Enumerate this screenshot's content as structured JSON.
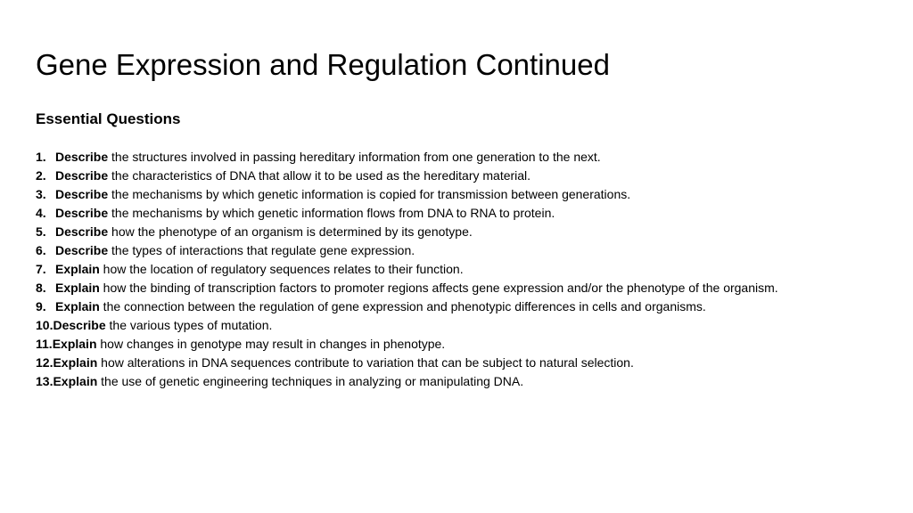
{
  "title": "Gene Expression and Regulation Continued",
  "subtitle": "Essential Questions",
  "items": [
    {
      "num": "1.",
      "verb": "Describe",
      "text": " the structures involved in passing hereditary information from one generation to the next."
    },
    {
      "num": "2.",
      "verb": "Describe",
      "text": " the characteristics of DNA that allow it to be used as the hereditary material."
    },
    {
      "num": "3.",
      "verb": "Describe",
      "text": " the mechanisms by which genetic information is copied for transmission between generations."
    },
    {
      "num": "4.",
      "verb": "Describe",
      "text": " the mechanisms by which genetic information flows from DNA to RNA to protein."
    },
    {
      "num": "5.",
      "verb": "Describe",
      "text": " how the phenotype of an organism is determined by its genotype."
    },
    {
      "num": "6.",
      "verb": "Describe",
      "text": " the types of interactions that regulate gene expression."
    },
    {
      "num": "7.",
      "verb": "Explain",
      "text": " how the location of regulatory sequences relates to their function."
    },
    {
      "num": "8.",
      "verb": "Explain",
      "text": " how the binding of transcription factors to promoter regions affects gene expression and/or the phenotype of the organism."
    },
    {
      "num": "9.",
      "verb": "Explain",
      "text": " the connection between the regulation of gene expression and phenotypic differences in cells and organisms."
    },
    {
      "num": "10.",
      "verb": "Describe",
      "text": " the various types of mutation."
    },
    {
      "num": "11.",
      "verb": "Explain",
      "text": " how changes in genotype may result in changes in phenotype."
    },
    {
      "num": "12.",
      "verb": "Explain",
      "text": " how alterations in DNA sequences contribute to variation that can be subject to natural selection."
    },
    {
      "num": "13.",
      "verb": "Explain",
      "text": " the use of genetic engineering techniques in analyzing or manipulating DNA."
    }
  ]
}
